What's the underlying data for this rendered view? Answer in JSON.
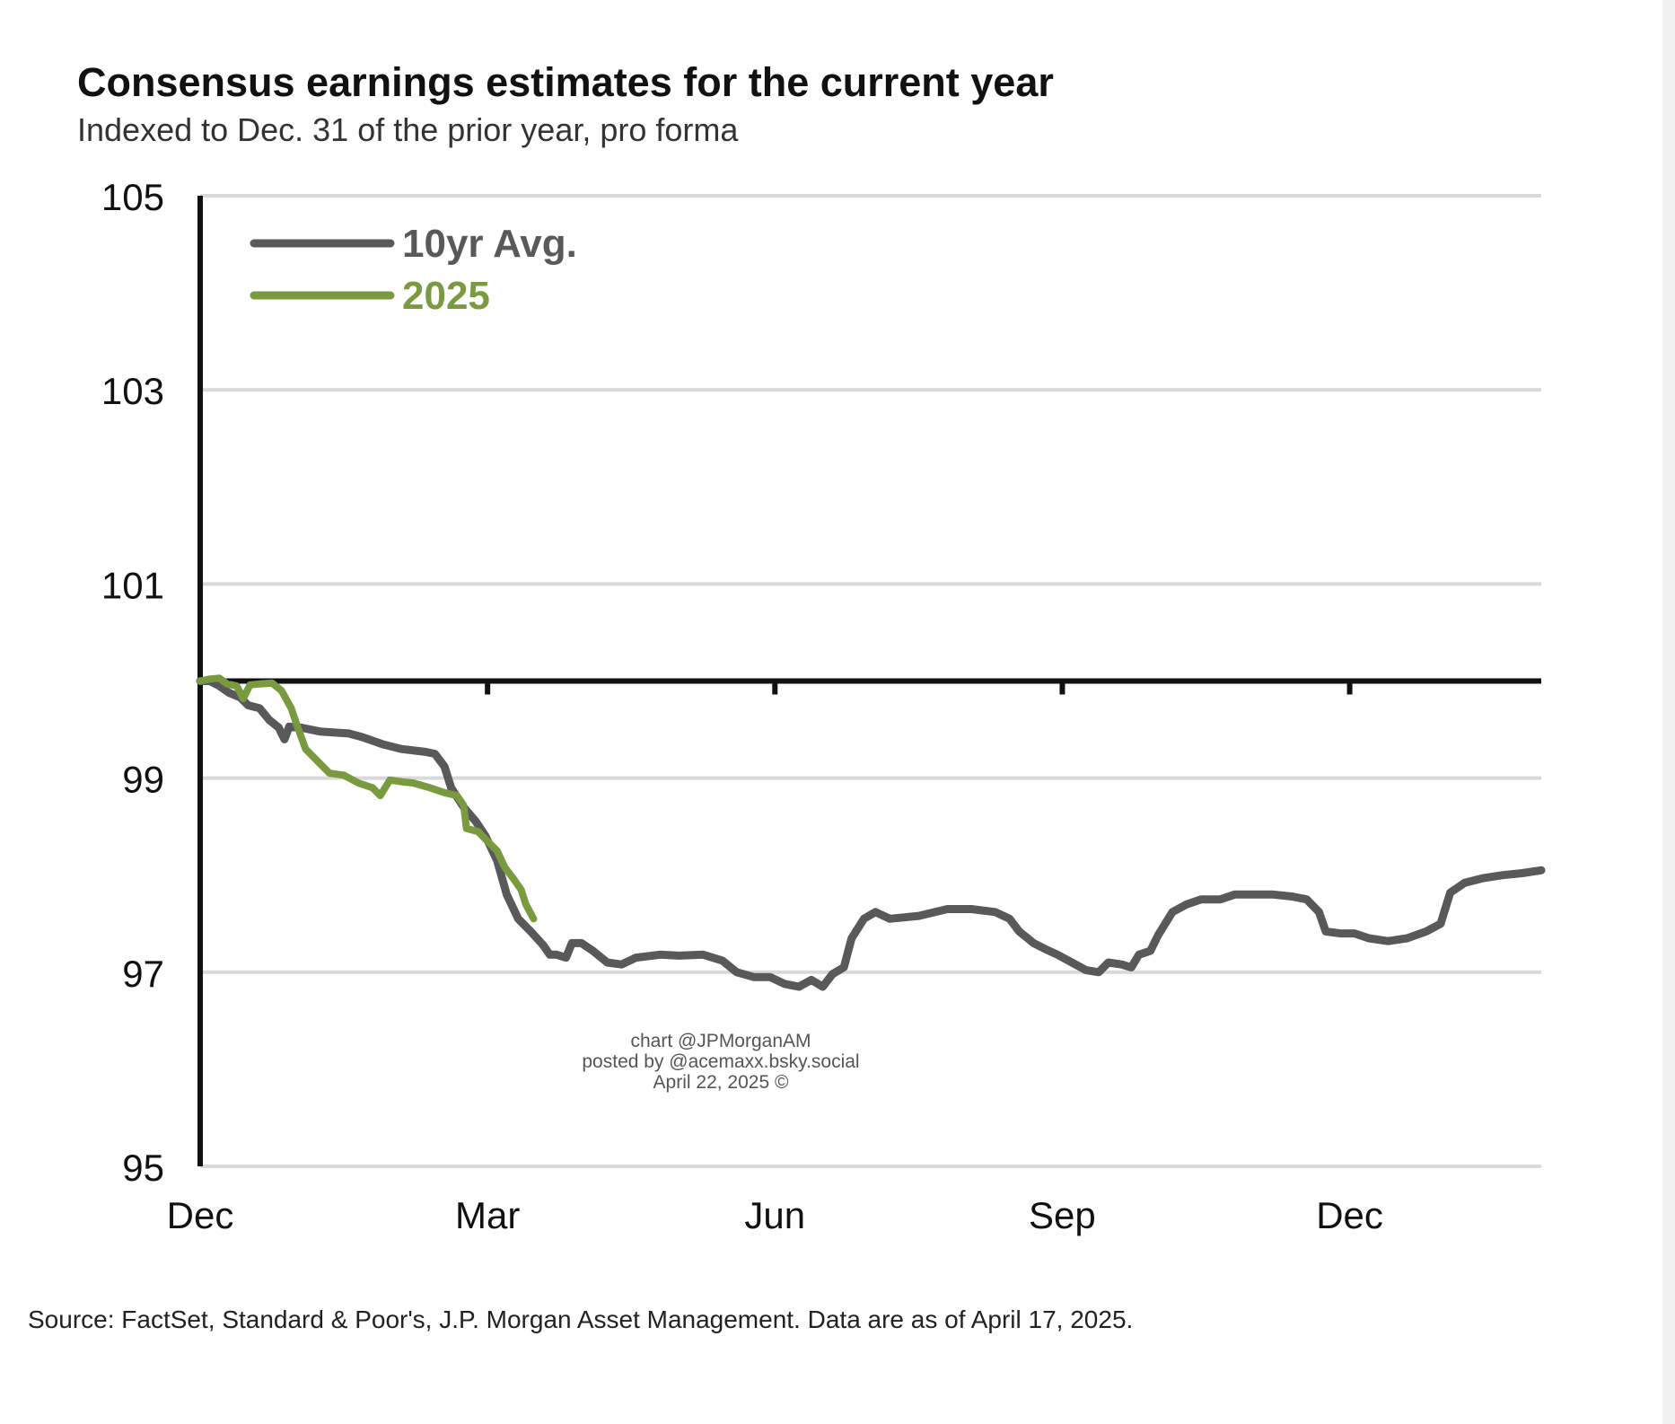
{
  "title": "Consensus earnings estimates for the current year",
  "subtitle": "Indexed to Dec. 31 of the prior year, pro forma",
  "source": "Source: FactSet, Standard & Poor's, J.P. Morgan Asset Management. Data are as of April 17, 2025.",
  "watermark": {
    "line1": "chart @JPMorganAM",
    "line2": "posted by @acemaxx.bsky.social",
    "line3": "April 22, 2025 ©"
  },
  "colors": {
    "avg": "#58595b",
    "y2025": "#7a9a3f",
    "grid": "#d9d9d9",
    "axis": "#111111",
    "text": "#111111"
  },
  "chart_data": {
    "type": "line",
    "title": "Consensus earnings estimates for the current year",
    "subtitle": "Indexed to Dec. 31 of the prior year, pro forma",
    "xlabel": "",
    "ylabel": "",
    "ylim": [
      95,
      105
    ],
    "xlim": [
      0,
      14
    ],
    "x_ticks": [
      {
        "label": "Dec",
        "x": 0
      },
      {
        "label": "Mar",
        "x": 3
      },
      {
        "label": "Jun",
        "x": 6
      },
      {
        "label": "Sep",
        "x": 9
      },
      {
        "label": "Dec",
        "x": 12
      }
    ],
    "y_ticks": [
      "95",
      "97",
      "99",
      "101",
      "103",
      "105"
    ],
    "y_tick_values": [
      95,
      97,
      99,
      101,
      103,
      105
    ],
    "baseline": 100,
    "grid": true,
    "legend_position": "top-left",
    "series": [
      {
        "name": "10yr Avg.",
        "color": "#58595b",
        "points": [
          [
            0.0,
            100.0
          ],
          [
            0.1,
            100.0
          ],
          [
            0.2,
            99.95
          ],
          [
            0.3,
            99.88
          ],
          [
            0.42,
            99.83
          ],
          [
            0.5,
            99.75
          ],
          [
            0.62,
            99.72
          ],
          [
            0.72,
            99.6
          ],
          [
            0.82,
            99.52
          ],
          [
            0.88,
            99.4
          ],
          [
            0.93,
            99.53
          ],
          [
            1.05,
            99.52
          ],
          [
            1.25,
            99.48
          ],
          [
            1.55,
            99.46
          ],
          [
            1.7,
            99.42
          ],
          [
            1.9,
            99.35
          ],
          [
            2.1,
            99.3
          ],
          [
            2.35,
            99.27
          ],
          [
            2.45,
            99.25
          ],
          [
            2.55,
            99.12
          ],
          [
            2.62,
            98.9
          ],
          [
            2.75,
            98.7
          ],
          [
            2.88,
            98.55
          ],
          [
            2.98,
            98.4
          ],
          [
            3.1,
            98.15
          ],
          [
            3.2,
            97.8
          ],
          [
            3.32,
            97.55
          ],
          [
            3.45,
            97.42
          ],
          [
            3.58,
            97.28
          ],
          [
            3.65,
            97.18
          ],
          [
            3.72,
            97.18
          ],
          [
            3.82,
            97.15
          ],
          [
            3.88,
            97.3
          ],
          [
            3.98,
            97.3
          ],
          [
            4.1,
            97.22
          ],
          [
            4.25,
            97.1
          ],
          [
            4.4,
            97.08
          ],
          [
            4.55,
            97.15
          ],
          [
            4.8,
            97.18
          ],
          [
            5.0,
            97.17
          ],
          [
            5.25,
            97.18
          ],
          [
            5.45,
            97.12
          ],
          [
            5.6,
            97.0
          ],
          [
            5.78,
            96.95
          ],
          [
            5.95,
            96.95
          ],
          [
            6.1,
            96.88
          ],
          [
            6.25,
            96.85
          ],
          [
            6.38,
            96.92
          ],
          [
            6.5,
            96.85
          ],
          [
            6.6,
            96.98
          ],
          [
            6.72,
            97.05
          ],
          [
            6.8,
            97.35
          ],
          [
            6.93,
            97.55
          ],
          [
            7.05,
            97.62
          ],
          [
            7.2,
            97.55
          ],
          [
            7.5,
            97.58
          ],
          [
            7.8,
            97.65
          ],
          [
            8.05,
            97.65
          ],
          [
            8.3,
            97.62
          ],
          [
            8.45,
            97.55
          ],
          [
            8.55,
            97.42
          ],
          [
            8.7,
            97.3
          ],
          [
            8.82,
            97.24
          ],
          [
            8.95,
            97.18
          ],
          [
            9.1,
            97.1
          ],
          [
            9.25,
            97.02
          ],
          [
            9.38,
            97.0
          ],
          [
            9.48,
            97.1
          ],
          [
            9.62,
            97.08
          ],
          [
            9.72,
            97.05
          ],
          [
            9.8,
            97.18
          ],
          [
            9.92,
            97.22
          ],
          [
            10.0,
            97.38
          ],
          [
            10.15,
            97.62
          ],
          [
            10.3,
            97.7
          ],
          [
            10.45,
            97.75
          ],
          [
            10.65,
            97.75
          ],
          [
            10.8,
            97.8
          ],
          [
            11.0,
            97.8
          ],
          [
            11.2,
            97.8
          ],
          [
            11.4,
            97.78
          ],
          [
            11.55,
            97.75
          ],
          [
            11.68,
            97.62
          ],
          [
            11.75,
            97.42
          ],
          [
            11.9,
            97.4
          ],
          [
            12.05,
            97.4
          ],
          [
            12.2,
            97.35
          ],
          [
            12.4,
            97.32
          ],
          [
            12.6,
            97.35
          ],
          [
            12.8,
            97.42
          ],
          [
            12.95,
            97.5
          ],
          [
            13.05,
            97.82
          ],
          [
            13.2,
            97.92
          ],
          [
            13.4,
            97.97
          ],
          [
            13.6,
            98.0
          ],
          [
            13.8,
            98.02
          ],
          [
            14.0,
            98.05
          ]
        ]
      },
      {
        "name": "2025",
        "color": "#7a9a3f",
        "points": [
          [
            0.0,
            100.0
          ],
          [
            0.1,
            100.02
          ],
          [
            0.2,
            100.03
          ],
          [
            0.28,
            99.97
          ],
          [
            0.38,
            99.95
          ],
          [
            0.45,
            99.82
          ],
          [
            0.52,
            99.96
          ],
          [
            0.62,
            99.97
          ],
          [
            0.75,
            99.98
          ],
          [
            0.85,
            99.9
          ],
          [
            0.95,
            99.72
          ],
          [
            1.02,
            99.52
          ],
          [
            1.1,
            99.3
          ],
          [
            1.25,
            99.15
          ],
          [
            1.35,
            99.05
          ],
          [
            1.5,
            99.03
          ],
          [
            1.65,
            98.95
          ],
          [
            1.8,
            98.9
          ],
          [
            1.88,
            98.82
          ],
          [
            1.98,
            98.98
          ],
          [
            2.12,
            98.96
          ],
          [
            2.22,
            98.95
          ],
          [
            2.4,
            98.9
          ],
          [
            2.55,
            98.85
          ],
          [
            2.68,
            98.82
          ],
          [
            2.75,
            98.72
          ],
          [
            2.78,
            98.48
          ],
          [
            2.9,
            98.45
          ],
          [
            3.0,
            98.35
          ],
          [
            3.1,
            98.25
          ],
          [
            3.18,
            98.08
          ],
          [
            3.28,
            97.95
          ],
          [
            3.35,
            97.85
          ],
          [
            3.4,
            97.7
          ],
          [
            3.48,
            97.55
          ]
        ]
      }
    ]
  }
}
